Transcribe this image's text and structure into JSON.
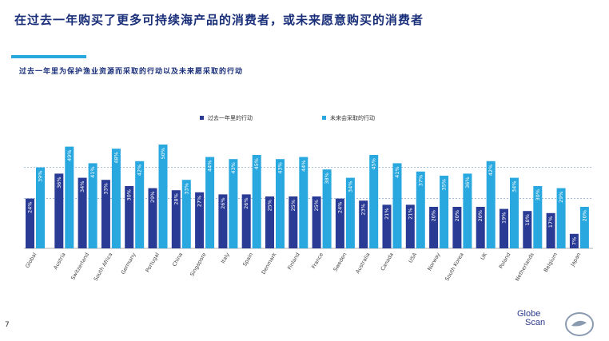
{
  "title": "在过去一年购买了更多可持续海产品的消费者，或未来愿意购买的消费者",
  "subtitle": "过去一年里为保护渔业资源而采取的行动以及未来愿采取的行动",
  "page_number": "7",
  "logo": {
    "line1": "Globe",
    "line2": "Scan"
  },
  "colors": {
    "past": "#2a3b95",
    "future": "#29a8e0",
    "title": "#1a2f7a"
  },
  "chart_data": {
    "type": "bar",
    "legend_position": "top",
    "series": [
      {
        "name": "过去一年里的行动",
        "color": "#2a3b95",
        "values": [
          24,
          36,
          34,
          33,
          30,
          29,
          28,
          27,
          26,
          26,
          25,
          25,
          25,
          24,
          23,
          21,
          21,
          20,
          20,
          20,
          19,
          18,
          17,
          7
        ]
      },
      {
        "name": "未来会采取的行动",
        "color": "#29a8e0",
        "values": [
          39,
          49,
          41,
          48,
          42,
          50,
          33,
          44,
          43,
          45,
          43,
          44,
          38,
          34,
          45,
          41,
          37,
          35,
          36,
          42,
          34,
          30,
          29,
          20
        ]
      }
    ],
    "categories": [
      "Global",
      "Austria",
      "Switzerland",
      "South Africa",
      "Germany",
      "Portugal",
      "China",
      "Singapore",
      "Italy",
      "Spain",
      "Denmark",
      "Finland",
      "France",
      "Sweden",
      "Australia",
      "Canada",
      "USA",
      "Norway",
      "South Korea",
      "UK",
      "Poland",
      "Netherlands",
      "Belgium",
      "Japan"
    ],
    "reference_lines": [
      39,
      24
    ],
    "ylim": [
      0,
      52
    ]
  }
}
